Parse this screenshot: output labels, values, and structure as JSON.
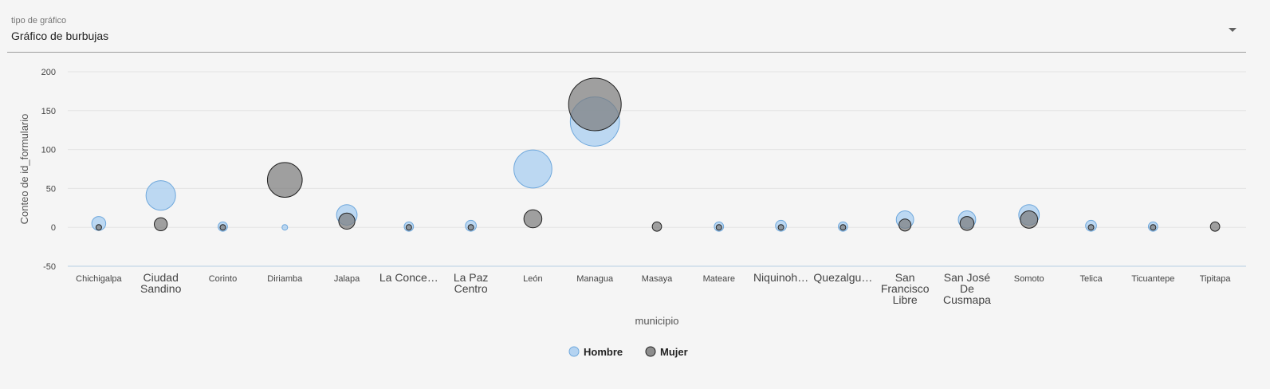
{
  "selector": {
    "label": "tipo de gráfico",
    "value": "Gráfico de burbujas",
    "icon": "chevron-down-icon"
  },
  "chart_data": {
    "type": "scatter",
    "variant": "bubble",
    "xlabel": "municipio",
    "ylabel": "Conteo de id_formulario",
    "ylim": [
      -50,
      200
    ],
    "yticks": [
      -50,
      0,
      50,
      100,
      150,
      200
    ],
    "grid": true,
    "legend_position": "bottom-center",
    "categories": [
      "Chichigalpa",
      "Ciudad Sandino",
      "Corinto",
      "Diriamba",
      "Jalapa",
      "La Conce…",
      "La Paz Centro",
      "León",
      "Managua",
      "Masaya",
      "Mateare",
      "Niquinoh…",
      "Quezalgu…",
      "San Francisco Libre",
      "San José De Cusmapa",
      "Somoto",
      "Telica",
      "Ticuantepe",
      "Tipitapa"
    ],
    "category_lines": [
      [
        "Chichigalpa"
      ],
      [
        "Ciudad",
        "Sandino"
      ],
      [
        "Corinto"
      ],
      [
        "Diriamba"
      ],
      [
        "Jalapa"
      ],
      [
        "La Conce…"
      ],
      [
        "La Paz",
        "Centro"
      ],
      [
        "León"
      ],
      [
        "Managua"
      ],
      [
        "Masaya"
      ],
      [
        "Mateare"
      ],
      [
        "Niquinoh…"
      ],
      [
        "Quezalgu…"
      ],
      [
        "San",
        "Francisco",
        "Libre"
      ],
      [
        "San José",
        "De",
        "Cusmapa"
      ],
      [
        "Somoto"
      ],
      [
        "Telica"
      ],
      [
        "Ticuantepe"
      ],
      [
        "Tipitapa"
      ]
    ],
    "large_label_indices": [
      1,
      5,
      6,
      11,
      12,
      13,
      14
    ],
    "series": [
      {
        "name": "Hombre",
        "color": "#a8cdf0",
        "stroke": "#6fa8dc",
        "values": [
          5,
          41,
          1,
          0,
          16,
          1,
          2,
          75,
          136,
          null,
          1,
          2,
          1,
          10,
          10,
          16,
          2,
          1,
          null
        ]
      },
      {
        "name": "Mujer",
        "color": "#7a7a7a",
        "stroke": "#222222",
        "values": [
          0,
          4,
          0,
          61,
          8,
          0,
          0,
          11,
          158,
          1,
          0,
          0,
          0,
          3,
          5,
          10,
          0,
          0,
          1
        ]
      }
    ]
  }
}
